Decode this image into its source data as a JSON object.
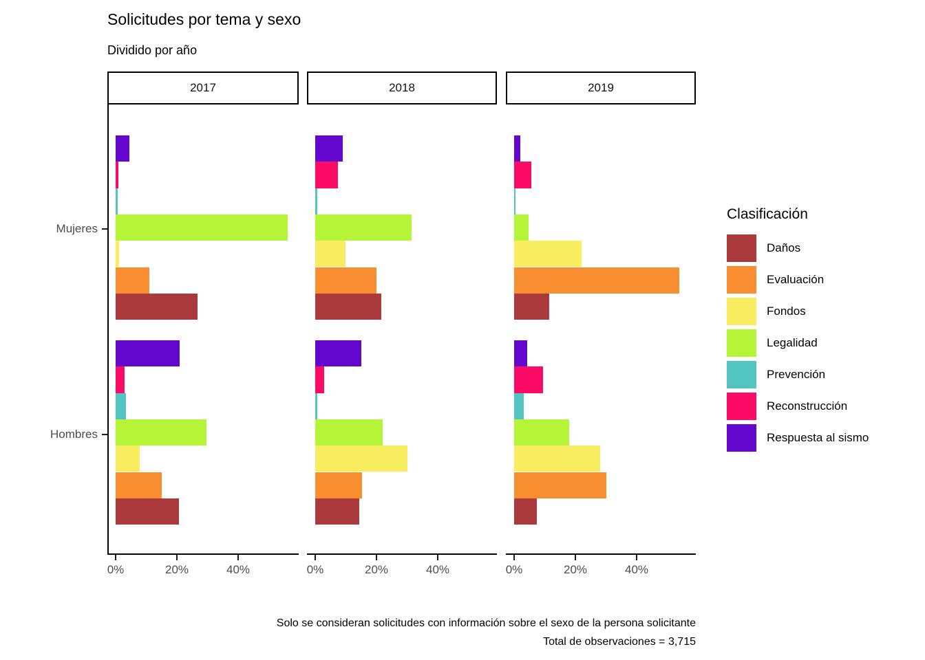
{
  "chart_data": {
    "type": "bar",
    "orientation": "horizontal",
    "title": "Solicitudes por tema y sexo",
    "subtitle": "Dividido por año",
    "caption": [
      "Solo se consideran solicitudes con información sobre el sexo de la persona solicitante",
      "Total de observaciones = 3,715"
    ],
    "legend_title": "Clasificación",
    "facets": [
      "2017",
      "2018",
      "2019"
    ],
    "groups": [
      "Mujeres",
      "Hombres"
    ],
    "x_ticks": {
      "values": [
        0,
        20,
        40
      ],
      "labels": [
        "0%",
        "20%",
        "40%"
      ]
    },
    "x_max": 60,
    "unit": "percent",
    "grid": false,
    "legend_position": "right",
    "series": [
      {
        "name": "Daños",
        "color": "#AA3A3C",
        "values": [
          [
            26.7,
            20.7
          ],
          [
            21.6,
            14.4
          ],
          [
            11.4,
            7.4
          ]
        ]
      },
      {
        "name": "Evaluación",
        "color": "#F98E31",
        "values": [
          [
            11.0,
            15.1
          ],
          [
            20.0,
            15.3
          ],
          [
            53.9,
            30.1
          ]
        ]
      },
      {
        "name": "Fondos",
        "color": "#F8EC5F",
        "values": [
          [
            1.1,
            7.9
          ],
          [
            9.9,
            30.1
          ],
          [
            22.0,
            28.1
          ]
        ]
      },
      {
        "name": "Legalidad",
        "color": "#B5F436",
        "values": [
          [
            56.2,
            29.7
          ],
          [
            31.5,
            22.0
          ],
          [
            4.7,
            18.0
          ]
        ]
      },
      {
        "name": "Prevención",
        "color": "#52C5C0",
        "values": [
          [
            0.6,
            3.4
          ],
          [
            0.7,
            0.7
          ],
          [
            0.5,
            3.1
          ]
        ]
      },
      {
        "name": "Reconstrucción",
        "color": "#FB0A66",
        "values": [
          [
            0.9,
            2.9
          ],
          [
            7.4,
            2.9
          ],
          [
            5.6,
            9.4
          ]
        ]
      },
      {
        "name": "Respuesta al sismo",
        "color": "#6306CE",
        "values": [
          [
            4.4,
            20.9
          ],
          [
            9.0,
            15.1
          ],
          [
            2.0,
            4.3
          ]
        ]
      }
    ]
  }
}
